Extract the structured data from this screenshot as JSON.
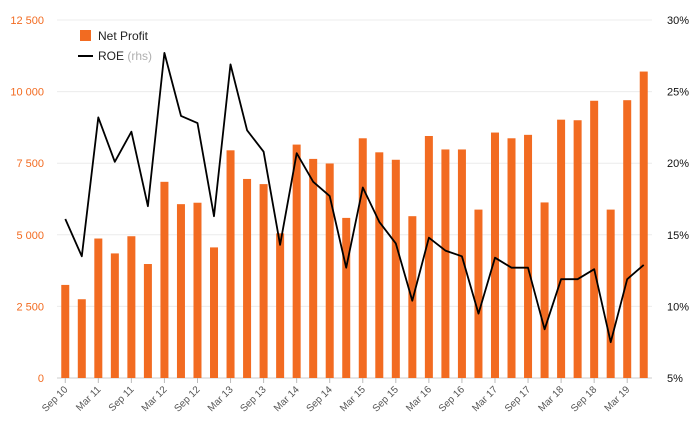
{
  "chart_data": {
    "type": "bar",
    "categories": [
      "Sep 10",
      "Dec 10",
      "Mar 11",
      "Jun 11",
      "Sep 11",
      "Dec 11",
      "Mar 12",
      "Jun 12",
      "Sep 12",
      "Dec 12",
      "Mar 13",
      "Jun 13",
      "Sep 13",
      "Dec 13",
      "Mar 14",
      "Jun 14",
      "Sep 14",
      "Dec 14",
      "Mar 15",
      "Jun 15",
      "Sep 15",
      "Dec 15",
      "Mar 16",
      "Jun 16",
      "Sep 16",
      "Dec 16",
      "Mar 17",
      "Jun 17",
      "Sep 17",
      "Dec 17",
      "Mar 18",
      "Jun 18",
      "Sep 18",
      "Dec 18",
      "Mar 19",
      "Jun 19"
    ],
    "x_tick_labels": [
      "Sep 10",
      "Mar 11",
      "Sep 11",
      "Mar 12",
      "Sep 12",
      "Mar 13",
      "Sep 13",
      "Mar 14",
      "Sep 14",
      "Mar 15",
      "Sep 15",
      "Mar 16",
      "Sep 16",
      "Mar 17",
      "Sep 17",
      "Mar 18",
      "Sep 18",
      "Mar 19"
    ],
    "series": [
      {
        "name": "Net Profit",
        "type": "bar",
        "axis": "left",
        "color": "#f26b21",
        "values": [
          3250,
          2750,
          4870,
          4350,
          4950,
          3980,
          6850,
          6070,
          6120,
          4560,
          7950,
          6950,
          6770,
          5050,
          8150,
          7650,
          7490,
          5590,
          8370,
          7880,
          7620,
          5650,
          8450,
          7980,
          7980,
          5880,
          8570,
          8370,
          8490,
          6130,
          9020,
          9000,
          9680,
          5880,
          9700,
          10700
        ]
      },
      {
        "name": "ROE",
        "type": "line",
        "axis": "right",
        "color": "#000000",
        "values": [
          16.1,
          13.5,
          23.2,
          20.1,
          22.2,
          17.0,
          27.7,
          23.3,
          22.8,
          16.3,
          26.9,
          22.3,
          20.8,
          14.3,
          20.7,
          18.7,
          17.7,
          12.7,
          18.3,
          15.9,
          14.4,
          10.4,
          14.8,
          13.9,
          13.5,
          9.5,
          13.4,
          12.7,
          12.7,
          8.4,
          11.9,
          11.9,
          12.6,
          7.5,
          11.9,
          12.9
        ]
      }
    ],
    "legend": [
      {
        "label": "Net Profit",
        "note": "",
        "marker": "square",
        "color": "#f26b21"
      },
      {
        "label": "ROE",
        "note": "(rhs)",
        "marker": "line",
        "color": "#000000"
      }
    ],
    "left_axis": {
      "ylim": [
        0,
        12500
      ],
      "ticks": [
        0,
        2500,
        5000,
        7500,
        10000,
        12500
      ],
      "tick_labels": [
        "0",
        "2 500",
        "5 000",
        "7 500",
        "10 000",
        "12 500"
      ],
      "color": "#f26b21"
    },
    "right_axis": {
      "ylim": [
        5,
        30
      ],
      "ticks": [
        5,
        10,
        15,
        20,
        25,
        30
      ],
      "tick_labels": [
        "5%",
        "10%",
        "15%",
        "20%",
        "25%",
        "30%"
      ],
      "color": "#111111"
    },
    "grid": true,
    "legend_position": "top-left",
    "title": "",
    "xlabel": "",
    "ylabel": ""
  }
}
